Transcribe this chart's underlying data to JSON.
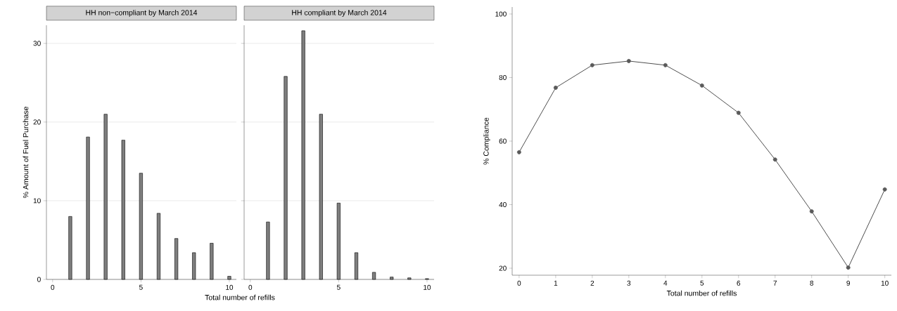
{
  "chart_data": [
    {
      "type": "bar",
      "title": "HH non−compliant by March 2014",
      "ylabel": "% Amount of Fuel Purchase",
      "xlabel": "Total number of refills",
      "x": [
        1,
        2,
        3,
        4,
        5,
        6,
        7,
        8,
        9,
        10
      ],
      "values": [
        8.0,
        18.1,
        21.0,
        17.7,
        13.5,
        8.4,
        5.2,
        3.4,
        4.6,
        0.4
      ],
      "color": "#7f7f7f",
      "xlim": [
        -0.35,
        10.4
      ],
      "ylim": [
        0,
        32.3
      ],
      "xticks": [
        0,
        5,
        10
      ],
      "yticks": [
        0,
        10,
        20,
        30
      ],
      "grid": "y"
    },
    {
      "type": "bar",
      "title": "HH compliant by March 2014",
      "x": [
        1,
        2,
        3,
        4,
        5,
        6,
        7,
        8,
        9,
        10
      ],
      "values": [
        7.3,
        25.8,
        31.6,
        21.0,
        9.7,
        3.4,
        0.9,
        0.3,
        0.2,
        0.1
      ],
      "color": "#7f7f7f",
      "xlim": [
        -0.35,
        10.4
      ],
      "ylim": [
        0,
        32.3
      ],
      "xticks": [
        0,
        5,
        10
      ],
      "yticks": [
        0,
        10,
        20,
        30
      ],
      "grid": "y",
      "tick_labels": "x"
    },
    {
      "type": "line",
      "xlabel": "Total number of refills",
      "ylabel": "% Compliance",
      "x": [
        0,
        1,
        2,
        3,
        4,
        5,
        6,
        7,
        8,
        9,
        10
      ],
      "values": [
        56.5,
        76.8,
        83.9,
        85.2,
        83.9,
        77.5,
        68.9,
        54.2,
        37.9,
        20.2,
        44.8
      ],
      "color": "#5a5a5a",
      "marker": "circle",
      "xlim": [
        -0.19,
        10.18
      ],
      "ylim": [
        17.8,
        102.2
      ],
      "xticks": [
        0,
        1,
        2,
        3,
        4,
        5,
        6,
        7,
        8,
        9,
        10
      ],
      "yticks": [
        20,
        40,
        60,
        80,
        100
      ]
    }
  ]
}
